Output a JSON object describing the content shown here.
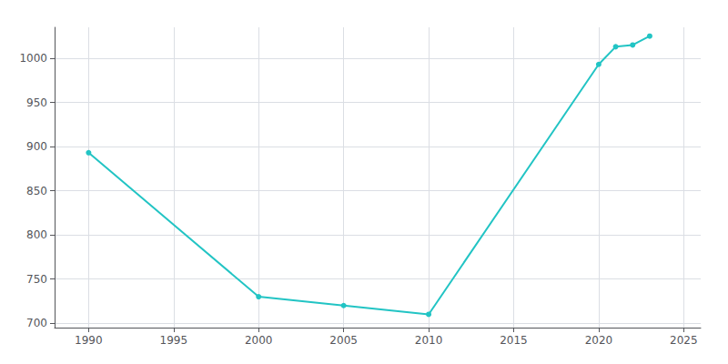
{
  "chart_data": {
    "type": "line",
    "x": [
      1990,
      2000,
      2005,
      2010,
      2020,
      2021,
      2022,
      2023
    ],
    "values": [
      893,
      730,
      720,
      710,
      993,
      1013,
      1015,
      1025
    ],
    "color": "#22C4C4",
    "marker": "circle",
    "xlim": [
      1988,
      2026
    ],
    "xticks": [
      1990,
      1995,
      2000,
      2005,
      2010,
      2015,
      2020,
      2025
    ],
    "ylim": [
      695,
      1035
    ],
    "yticks": [
      700,
      750,
      800,
      850,
      900,
      950,
      1000
    ],
    "grid": true
  }
}
